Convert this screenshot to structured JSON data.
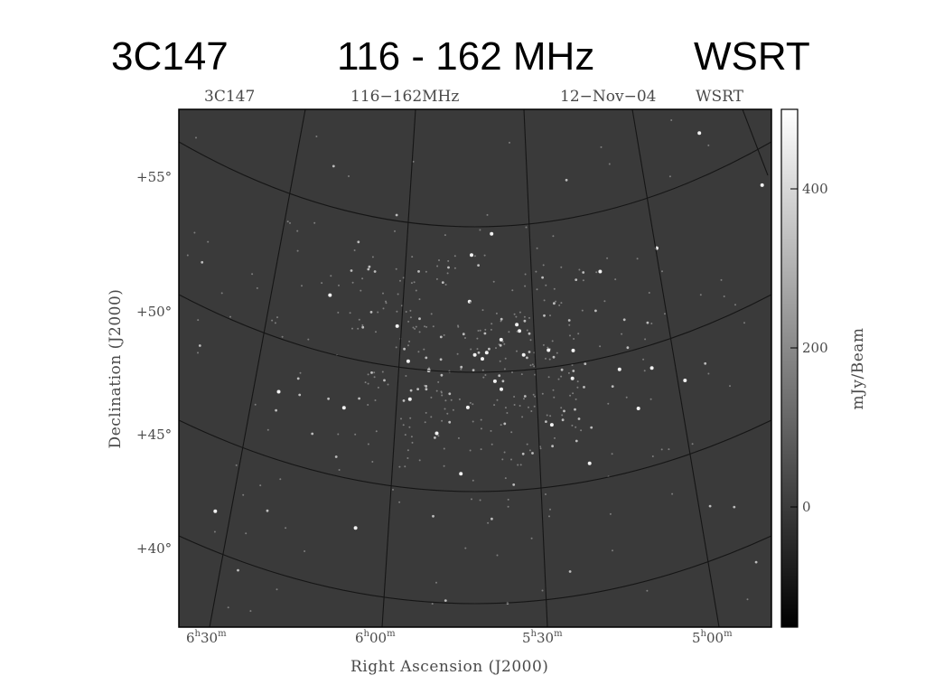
{
  "slide_title": {
    "source": "3C147",
    "band": "116 - 162 MHz",
    "telescope": "WSRT"
  },
  "plot_header": {
    "source": "3C147",
    "band": "116−162MHz",
    "date": "12−Nov−04",
    "telescope": "WSRT"
  },
  "axes": {
    "x_title": "Right Ascension (J2000)",
    "y_title": "Declination (J2000)",
    "dec_ticks": [
      "+55°",
      "+50°",
      "+45°",
      "+40°"
    ],
    "ra_ticks": [
      {
        "h": "6",
        "m": "30"
      },
      {
        "h": "6",
        "m": "00"
      },
      {
        "h": "5",
        "m": "30"
      },
      {
        "h": "5",
        "m": "00"
      }
    ],
    "hour_superscript": "h",
    "minute_superscript": "m"
  },
  "colorbar": {
    "label": "mJy/Beam",
    "ticks": [
      "400",
      "200",
      "0"
    ],
    "tick_values": [
      400,
      200,
      0
    ],
    "range": [
      -150,
      500
    ]
  },
  "colors": {
    "sky_background": "#3a3a3a",
    "grid_line": "#151515",
    "text": "#4a4a4a"
  }
}
